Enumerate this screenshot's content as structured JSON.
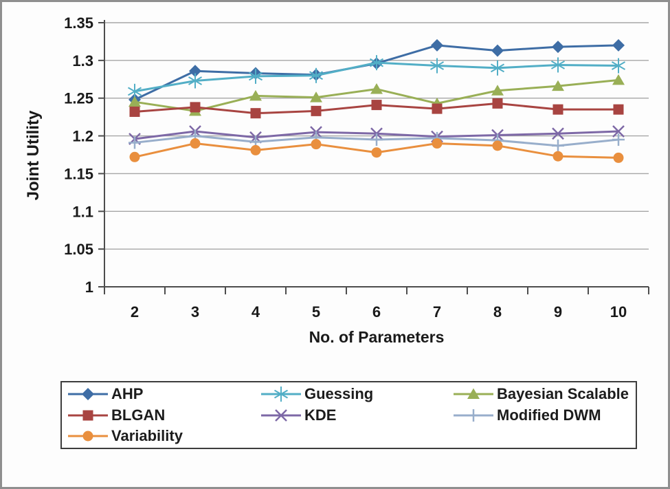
{
  "chart_data": {
    "type": "line",
    "title": "",
    "xlabel": "No. of Parameters",
    "ylabel": "Joint Utility",
    "x": [
      2,
      3,
      4,
      5,
      6,
      7,
      8,
      9,
      10
    ],
    "ylim": [
      1,
      1.35
    ],
    "ytick_step": 0.05,
    "ytick_labels": [
      "1",
      "1.05",
      "1.1",
      "1.15",
      "1.2",
      "1.25",
      "1.3",
      "1.35"
    ],
    "grid": true,
    "legend_position": "bottom",
    "series": [
      {
        "name": "AHP",
        "marker": "diamond",
        "color": "#3E6DA5",
        "values": [
          1.248,
          1.286,
          1.283,
          1.281,
          1.296,
          1.32,
          1.313,
          1.318,
          1.32
        ]
      },
      {
        "name": "Guessing",
        "marker": "asterisk",
        "color": "#52AEC6",
        "values": [
          1.259,
          1.273,
          1.279,
          1.28,
          1.297,
          1.293,
          1.29,
          1.294,
          1.293
        ]
      },
      {
        "name": "Bayesian Scalable",
        "marker": "triangle",
        "color": "#99AF56",
        "values": [
          1.245,
          1.233,
          1.253,
          1.251,
          1.262,
          1.243,
          1.26,
          1.266,
          1.274
        ]
      },
      {
        "name": "BLGAN",
        "marker": "square",
        "color": "#A84441",
        "values": [
          1.232,
          1.238,
          1.23,
          1.233,
          1.241,
          1.236,
          1.243,
          1.235,
          1.235
        ]
      },
      {
        "name": "KDE",
        "marker": "x",
        "color": "#7D68A6",
        "values": [
          1.196,
          1.206,
          1.198,
          1.205,
          1.203,
          1.199,
          1.201,
          1.203,
          1.206
        ]
      },
      {
        "name": "Modified DWM",
        "marker": "plus",
        "color": "#98AECB",
        "values": [
          1.191,
          1.2,
          1.192,
          1.198,
          1.195,
          1.197,
          1.194,
          1.187,
          1.195
        ]
      },
      {
        "name": "Variability",
        "marker": "circle",
        "color": "#E98F3E",
        "values": [
          1.172,
          1.19,
          1.181,
          1.189,
          1.178,
          1.19,
          1.187,
          1.173,
          1.171
        ]
      }
    ]
  },
  "colors": {
    "gridline": "#A6A6A6",
    "axis": "#4d4d4d",
    "tick_text": "#1a1a1a",
    "frame_border": "#8f8f8f",
    "legend_border": "#3d3d3d",
    "background": "#ffffff"
  }
}
